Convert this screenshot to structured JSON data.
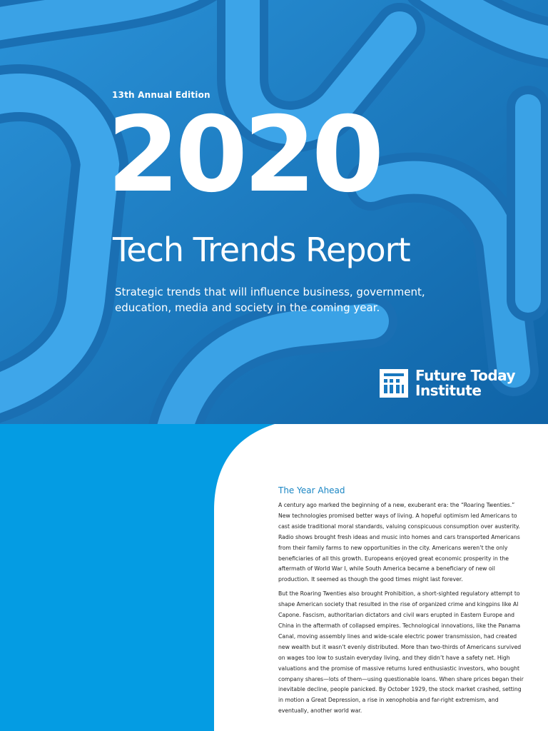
{
  "cover": {
    "edition": "13th Annual Edition",
    "year": "2020",
    "title": "Tech Trends Report",
    "subtitle": "Strategic trends that will influence business, government, education, media and society in the coming year.",
    "logo_text_line1": "Future Today",
    "logo_text_line2": "Institute",
    "logo_icon": "fti-logo-icon"
  },
  "colors": {
    "cover_blue": "#1878bf",
    "panel_blue": "#049ce3",
    "heading_blue": "#1a86c4"
  },
  "article": {
    "heading": "The Year Ahead",
    "paragraphs": [
      "A century ago marked the beginning of a new, exuberant era: the “Roaring Twenties.” New technologies promised better ways of living. A hopeful optimism led Americans to cast aside traditional moral standards, valuing conspicuous consumption over austerity. Radio shows brought fresh ideas and music into homes and cars transported Americans from their family farms to new opportunities in the city. Americans weren’t the only beneficiaries of all this growth. Europeans enjoyed great economic prosperity in the aftermath of World War I, while South America became a beneficiary of new oil production. It seemed as though the good times might last forever.",
      "But the Roaring Twenties also brought Prohibition, a short-sighted regulatory attempt to shape American society that resulted in the rise of organized crime and kingpins like Al Capone. Fascism, authoritarian dictators and civil wars erupted in Eastern Europe and China in the aftermath of collapsed empires. Technological innovations, like the Panama Canal, moving assembly lines and wide-scale electric power transmission, had created new wealth but it wasn’t evenly distributed. More than two-thirds of Americans survived on wages too low to sustain everyday living, and they didn’t have a safety net. High valuations and the promise of massive returns lured enthusiastic investors, who bought company shares—lots of them—using questionable loans. When share prices began their inevitable decline, people panicked. By October 1929, the stock market crashed, setting in motion a Great Depression, a rise in xenophobia and far-right extremism, and eventually, another world war."
    ]
  }
}
